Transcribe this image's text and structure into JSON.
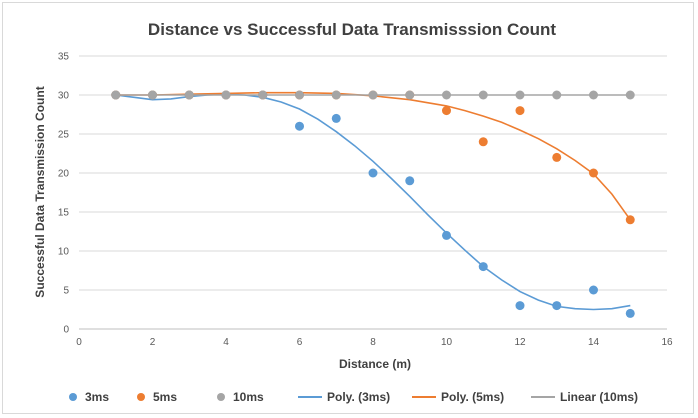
{
  "chart_data": {
    "type": "scatter",
    "title": "Distance vs Successful Data Transmisssion Count",
    "xlabel": "Distance (m)",
    "ylabel": "Successful Data Transmission Count",
    "xlim": [
      0,
      16
    ],
    "ylim": [
      0,
      35
    ],
    "xticks": [
      0,
      2,
      4,
      6,
      8,
      10,
      12,
      14,
      16
    ],
    "yticks": [
      0,
      5,
      10,
      15,
      20,
      25,
      30,
      35
    ],
    "grid": "horizontal",
    "legend_position": "bottom",
    "series": [
      {
        "name": "3ms",
        "color": "#5b9bd5",
        "marker": "circle",
        "points": [
          [
            1,
            30
          ],
          [
            2,
            30
          ],
          [
            3,
            30
          ],
          [
            4,
            30
          ],
          [
            5,
            30
          ],
          [
            6,
            26
          ],
          [
            7,
            27
          ],
          [
            8,
            20
          ],
          [
            9,
            19
          ],
          [
            10,
            12
          ],
          [
            11,
            8
          ],
          [
            12,
            3
          ],
          [
            13,
            3
          ],
          [
            14,
            5
          ],
          [
            15,
            2
          ]
        ]
      },
      {
        "name": "5ms",
        "color": "#ed7d31",
        "marker": "circle",
        "points": [
          [
            1,
            30
          ],
          [
            2,
            30
          ],
          [
            3,
            30
          ],
          [
            4,
            30
          ],
          [
            5,
            30
          ],
          [
            6,
            30
          ],
          [
            7,
            30
          ],
          [
            8,
            30
          ],
          [
            9,
            30
          ],
          [
            10,
            28
          ],
          [
            11,
            24
          ],
          [
            12,
            28
          ],
          [
            13,
            22
          ],
          [
            14,
            20
          ],
          [
            15,
            14
          ]
        ]
      },
      {
        "name": "10ms",
        "color": "#a5a5a5",
        "marker": "circle",
        "points": [
          [
            1,
            30
          ],
          [
            2,
            30
          ],
          [
            3,
            30
          ],
          [
            4,
            30
          ],
          [
            5,
            30
          ],
          [
            6,
            30
          ],
          [
            7,
            30
          ],
          [
            8,
            30
          ],
          [
            9,
            30
          ],
          [
            10,
            30
          ],
          [
            11,
            30
          ],
          [
            12,
            30
          ],
          [
            13,
            30
          ],
          [
            14,
            30
          ],
          [
            15,
            30
          ]
        ]
      }
    ],
    "trendlines": [
      {
        "name": "Poly. (3ms)",
        "color": "#5b9bd5",
        "points": [
          [
            1,
            30
          ],
          [
            1.5,
            29.7
          ],
          [
            2,
            29.4
          ],
          [
            2.5,
            29.5
          ],
          [
            3,
            29.8
          ],
          [
            3.5,
            30
          ],
          [
            4,
            30.1
          ],
          [
            4.5,
            30
          ],
          [
            5,
            29.7
          ],
          [
            5.5,
            29.1
          ],
          [
            6,
            28.2
          ],
          [
            6.5,
            26.9
          ],
          [
            7,
            25.3
          ],
          [
            7.5,
            23.5
          ],
          [
            8,
            21.5
          ],
          [
            8.5,
            19.3
          ],
          [
            9,
            17
          ],
          [
            9.5,
            14.6
          ],
          [
            10,
            12.3
          ],
          [
            10.5,
            10.1
          ],
          [
            11,
            8
          ],
          [
            11.5,
            6.3
          ],
          [
            12,
            4.8
          ],
          [
            12.5,
            3.7
          ],
          [
            13,
            2.9
          ],
          [
            13.5,
            2.6
          ],
          [
            14,
            2.5
          ],
          [
            14.5,
            2.6
          ],
          [
            15,
            3
          ]
        ]
      },
      {
        "name": "Poly. (5ms)",
        "color": "#ed7d31",
        "points": [
          [
            1,
            30
          ],
          [
            2,
            30
          ],
          [
            3,
            30.1
          ],
          [
            4,
            30.2
          ],
          [
            5,
            30.3
          ],
          [
            6,
            30.3
          ],
          [
            7,
            30.2
          ],
          [
            8,
            29.9
          ],
          [
            9,
            29.4
          ],
          [
            10,
            28.6
          ],
          [
            10.5,
            28
          ],
          [
            11,
            27.3
          ],
          [
            11.5,
            26.5
          ],
          [
            12,
            25.5
          ],
          [
            12.5,
            24.4
          ],
          [
            13,
            23.1
          ],
          [
            13.5,
            21.6
          ],
          [
            14,
            19.9
          ],
          [
            14.5,
            17.3
          ],
          [
            15,
            14
          ]
        ]
      },
      {
        "name": "Linear (10ms)",
        "color": "#a5a5a5",
        "points": [
          [
            1,
            30
          ],
          [
            15,
            30
          ]
        ]
      }
    ]
  },
  "legend": [
    {
      "label": "3ms",
      "kind": "marker",
      "color": "#5b9bd5"
    },
    {
      "label": "5ms",
      "kind": "marker",
      "color": "#ed7d31"
    },
    {
      "label": "10ms",
      "kind": "marker",
      "color": "#a5a5a5"
    },
    {
      "label": "Poly. (3ms)",
      "kind": "line",
      "color": "#5b9bd5"
    },
    {
      "label": "Poly. (5ms)",
      "kind": "line",
      "color": "#ed7d31"
    },
    {
      "label": "Linear (10ms)",
      "kind": "line",
      "color": "#a5a5a5"
    }
  ]
}
